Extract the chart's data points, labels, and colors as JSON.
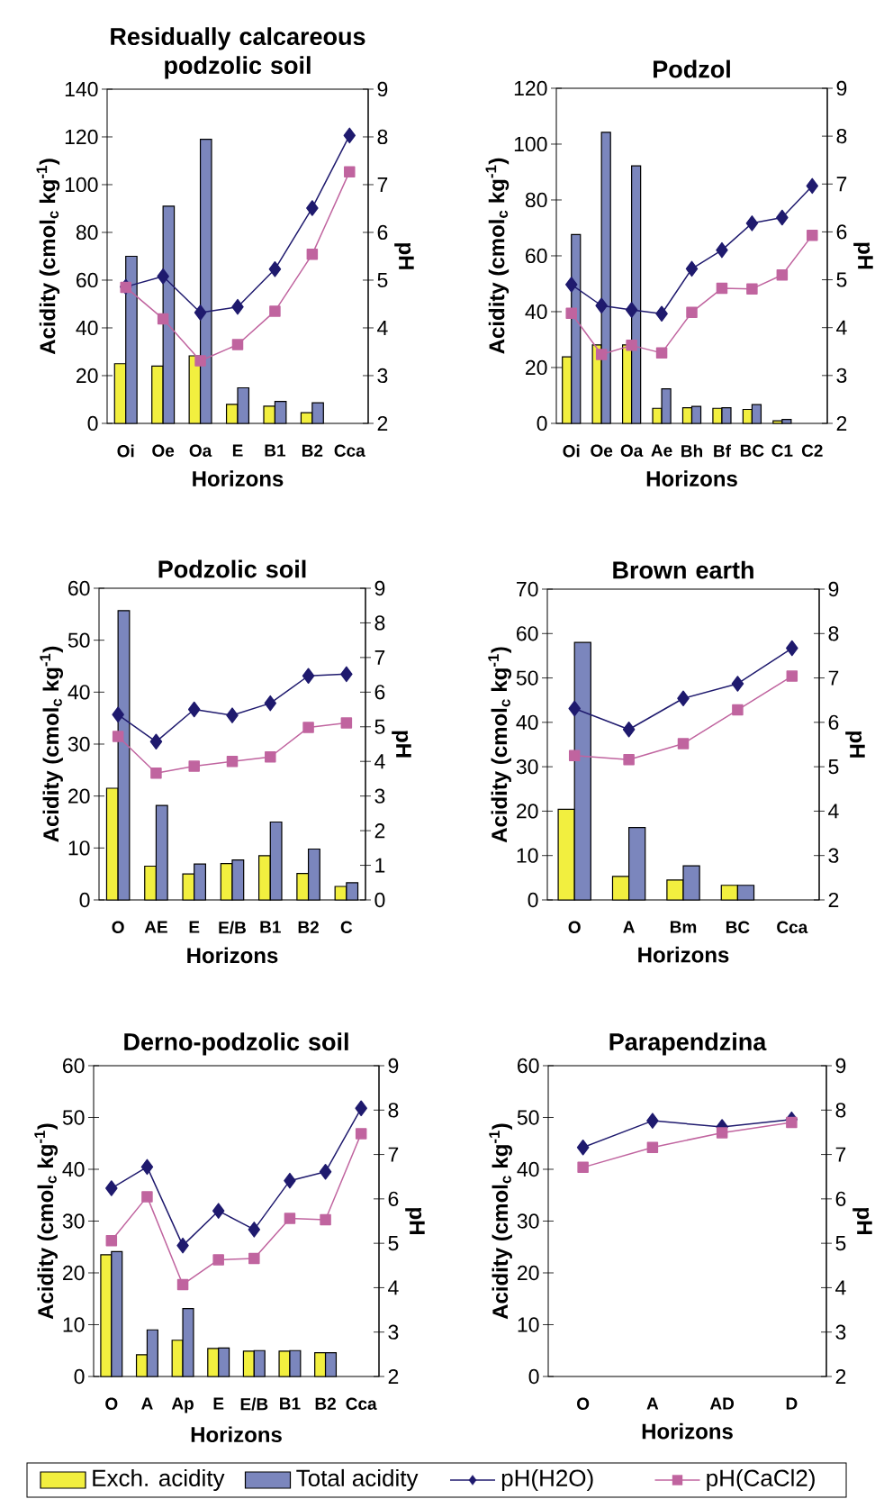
{
  "chart_data": [
    {
      "type": "bar",
      "title": "Residually calcareous podzolic soil",
      "xlabel": "Horizons",
      "ylabel": "Acidity (cmol$_{c}$ kg$^{-1}$)",
      "y2label": "pH",
      "categories": [
        "Oi",
        "Oe",
        "Oa",
        "E",
        "B1",
        "B2",
        "Cca"
      ],
      "ylim": [
        0,
        140
      ],
      "yticks": [
        0,
        20,
        40,
        60,
        80,
        100,
        120,
        140
      ],
      "y2lim": [
        2,
        9
      ],
      "y2ticks": [
        2,
        3,
        4,
        5,
        6,
        7,
        8,
        9
      ],
      "series": [
        {
          "type": "bar",
          "color": "#f2ef3f",
          "values": [
            25,
            24,
            28.3,
            8,
            7.2,
            4.5,
            null
          ]
        },
        {
          "type": "bar",
          "color": "#7b86bd",
          "values": [
            70,
            91,
            119,
            14.9,
            9.2,
            8.6,
            null
          ]
        },
        {
          "type": "line",
          "axis": "y2",
          "color": "#1f1a6e",
          "marker": "diamond",
          "values": [
            4.86,
            5.08,
            4.32,
            4.44,
            5.23,
            6.51,
            8.03
          ]
        },
        {
          "type": "line",
          "axis": "y2",
          "color": "#c0649f",
          "marker": "square",
          "values": [
            4.85,
            4.19,
            3.31,
            3.65,
            4.35,
            5.54,
            7.27
          ]
        }
      ]
    },
    {
      "type": "bar",
      "title": "Podzol",
      "xlabel": "Horizons",
      "ylabel": "Acidity (cmol$_{c}$ kg$^{-1}$)",
      "y2label": "pH",
      "categories": [
        "Oi",
        "Oe",
        "Oa",
        "Ae",
        "Bh",
        "Bf",
        "BC",
        "C1",
        "C2"
      ],
      "ylim": [
        0,
        120
      ],
      "yticks": [
        0,
        20,
        40,
        60,
        80,
        100,
        120
      ],
      "y2lim": [
        2,
        9
      ],
      "y2ticks": [
        2,
        3,
        4,
        5,
        6,
        7,
        8,
        9
      ],
      "series": [
        {
          "type": "bar",
          "color": "#f2ef3f",
          "values": [
            23.8,
            28.1,
            28.1,
            5.4,
            5.6,
            5.4,
            5.0,
            0.9,
            null
          ]
        },
        {
          "type": "bar",
          "color": "#7b86bd",
          "values": [
            67.6,
            104.2,
            92.2,
            12.4,
            6.1,
            5.6,
            6.7,
            1.4,
            null
          ]
        },
        {
          "type": "line",
          "axis": "y2",
          "color": "#1f1a6e",
          "marker": "diamond",
          "values": [
            4.9,
            4.46,
            4.37,
            4.29,
            5.23,
            5.62,
            6.18,
            6.3,
            6.96
          ]
        },
        {
          "type": "line",
          "axis": "y2",
          "color": "#c0649f",
          "marker": "square",
          "values": [
            4.3,
            3.44,
            3.63,
            3.47,
            4.32,
            4.82,
            4.81,
            5.1,
            5.93
          ]
        }
      ]
    },
    {
      "type": "bar",
      "title": "Podzolic soil",
      "xlabel": "Horizons",
      "ylabel": "Acidity (cmol$_{c}$ kg$^{-1}$)",
      "y2label": "pH",
      "categories": [
        "O",
        "AE",
        "E",
        "E/B",
        "B1",
        "B2",
        "C"
      ],
      "ylim": [
        0,
        60
      ],
      "yticks": [
        0,
        10,
        20,
        30,
        40,
        50,
        60
      ],
      "y2lim": [
        0,
        9
      ],
      "y2ticks": [
        0,
        1,
        2,
        3,
        4,
        5,
        6,
        7,
        8,
        9
      ],
      "series": [
        {
          "type": "bar",
          "color": "#f2ef3f",
          "values": [
            21.5,
            6.5,
            5.0,
            7.0,
            8.5,
            5.1,
            2.6
          ]
        },
        {
          "type": "bar",
          "color": "#7b86bd",
          "values": [
            55.7,
            18.2,
            6.9,
            7.7,
            15.0,
            9.8,
            3.3
          ]
        },
        {
          "type": "line",
          "axis": "y2",
          "color": "#1f1a6e",
          "marker": "diamond",
          "values": [
            5.35,
            4.57,
            5.5,
            5.33,
            5.68,
            6.47,
            6.52
          ]
        },
        {
          "type": "line",
          "axis": "y2",
          "color": "#c0649f",
          "marker": "square",
          "values": [
            4.72,
            3.66,
            3.86,
            4.0,
            4.13,
            4.98,
            5.11
          ]
        }
      ]
    },
    {
      "type": "bar",
      "title": "Brown earth",
      "xlabel": "Horizons",
      "ylabel": "Acidity (cmol$_{c}$ kg$^{-1}$)",
      "y2label": "pH",
      "categories": [
        "O",
        "A",
        "Bm",
        "BC",
        "Cca"
      ],
      "ylim": [
        0,
        70
      ],
      "yticks": [
        0,
        10,
        20,
        30,
        40,
        50,
        60,
        70
      ],
      "y2lim": [
        2,
        9
      ],
      "y2ticks": [
        2,
        3,
        4,
        5,
        6,
        7,
        8,
        9
      ],
      "series": [
        {
          "type": "bar",
          "color": "#f2ef3f",
          "values": [
            20.4,
            5.3,
            4.5,
            3.3,
            null
          ]
        },
        {
          "type": "bar",
          "color": "#7b86bd",
          "values": [
            58.0,
            16.3,
            7.7,
            3.3,
            null
          ]
        },
        {
          "type": "line",
          "axis": "y2",
          "color": "#1f1a6e",
          "marker": "diamond",
          "values": [
            6.31,
            5.84,
            6.54,
            6.87,
            7.67
          ]
        },
        {
          "type": "line",
          "axis": "y2",
          "color": "#c0649f",
          "marker": "square",
          "values": [
            5.25,
            5.16,
            5.52,
            6.28,
            7.04
          ]
        }
      ]
    },
    {
      "type": "bar",
      "title": "Derno-podzolic soil",
      "xlabel": "Horizons",
      "ylabel": "Acidity (cmol$_{c}$ kg$^{-1}$)",
      "y2label": "pH",
      "categories": [
        "O",
        "A",
        "Ap",
        "E",
        "E/B",
        "B1",
        "B2",
        "Cca"
      ],
      "ylim": [
        0,
        60
      ],
      "yticks": [
        0,
        10,
        20,
        30,
        40,
        50,
        60
      ],
      "y2lim": [
        2,
        9
      ],
      "y2ticks": [
        2,
        3,
        4,
        5,
        6,
        7,
        8,
        9
      ],
      "series": [
        {
          "type": "bar",
          "color": "#f2ef3f",
          "values": [
            23.5,
            4.2,
            7.0,
            5.4,
            4.9,
            4.9,
            4.6,
            null
          ]
        },
        {
          "type": "bar",
          "color": "#7b86bd",
          "values": [
            24.1,
            9.0,
            13.1,
            5.5,
            5.0,
            5.0,
            4.6,
            null
          ]
        },
        {
          "type": "line",
          "axis": "y2",
          "color": "#1f1a6e",
          "marker": "diamond",
          "values": [
            6.24,
            6.72,
            4.95,
            5.73,
            5.31,
            6.41,
            6.61,
            8.04
          ]
        },
        {
          "type": "line",
          "axis": "y2",
          "color": "#c0649f",
          "marker": "square",
          "values": [
            5.06,
            6.05,
            4.07,
            4.63,
            4.66,
            5.56,
            5.53,
            7.47
          ]
        }
      ]
    },
    {
      "type": "bar",
      "title": "Parapendzina",
      "xlabel": "Horizons",
      "ylabel": "Acidity (cmol$_{c}$ kg$^{-1}$)",
      "y2label": "pH",
      "categories": [
        "O",
        "A",
        "AD",
        "D"
      ],
      "ylim": [
        0,
        60
      ],
      "yticks": [
        0,
        10,
        20,
        30,
        40,
        50,
        60
      ],
      "y2lim": [
        2,
        9
      ],
      "y2ticks": [
        2,
        3,
        4,
        5,
        6,
        7,
        8,
        9
      ],
      "legend": "bottom",
      "series": [
        {
          "type": "bar",
          "name": "Exch. acidity",
          "color": "#f2ef3f",
          "values": [
            null,
            null,
            null,
            null
          ]
        },
        {
          "type": "bar",
          "name": "Total acidity",
          "color": "#7b86bd",
          "values": [
            null,
            null,
            null,
            null
          ]
        },
        {
          "type": "line",
          "axis": "y2",
          "name": "pH(H2O)",
          "color": "#1f1a6e",
          "marker": "diamond",
          "values": [
            7.16,
            7.76,
            7.62,
            7.79
          ]
        },
        {
          "type": "line",
          "axis": "y2",
          "name": "pH(CaCl2)",
          "color": "#c0649f",
          "marker": "square",
          "values": [
            6.71,
            7.16,
            7.49,
            7.72
          ]
        }
      ]
    }
  ]
}
